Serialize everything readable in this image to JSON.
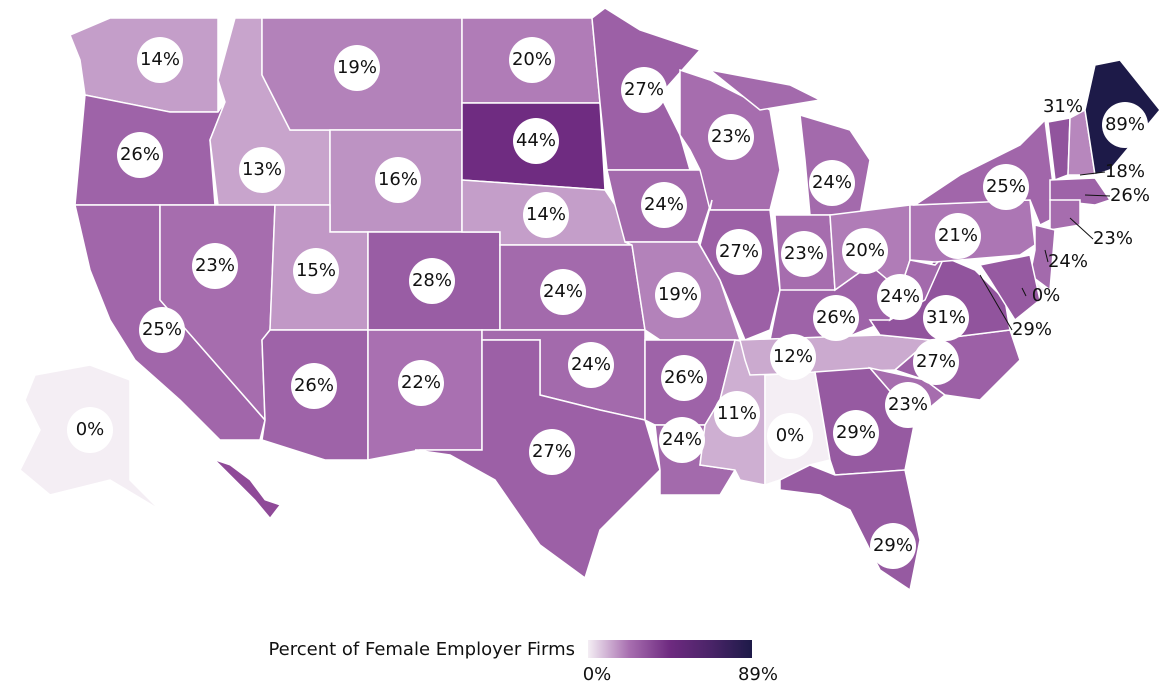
{
  "chart_data": {
    "type": "choropleth",
    "legend_title": "Percent of Female Employer Firms",
    "range": [
      0,
      89
    ],
    "ticks": [
      {
        "value": 0,
        "label": "0%"
      },
      {
        "value": 89,
        "label": "89%"
      }
    ],
    "colors": [
      "#f4eef4",
      "#a86fb0",
      "#6e2a80",
      "#4a2468",
      "#1d1a48"
    ],
    "values": [
      14,
      26,
      25,
      13,
      23,
      19,
      16,
      15,
      26,
      28,
      22,
      20,
      44,
      14,
      24,
      24,
      27,
      27,
      24,
      19,
      26,
      24,
      23,
      27,
      11,
      24,
      23,
      26,
      12,
      0,
      20,
      29,
      29,
      23,
      27,
      31,
      24,
      21,
      25,
      31,
      18,
      89,
      26,
      23,
      24,
      0,
      29,
      0
    ],
    "value_labels": [
      "14%",
      "26%",
      "25%",
      "13%",
      "23%",
      "19%",
      "16%",
      "15%",
      "26%",
      "28%",
      "22%",
      "20%",
      "44%",
      "14%",
      "24%",
      "24%",
      "27%",
      "27%",
      "24%",
      "19%",
      "26%",
      "24%",
      "23%",
      "27%",
      "11%",
      "24%",
      "23%",
      "26%",
      "12%",
      "0%",
      "20%",
      "29%",
      "29%",
      "23%",
      "27%",
      "31%",
      "24%",
      "21%",
      "25%",
      "31%",
      "18%",
      "89%",
      "26%",
      "23%",
      "24%",
      "0%",
      "29%",
      "0%"
    ]
  }
}
